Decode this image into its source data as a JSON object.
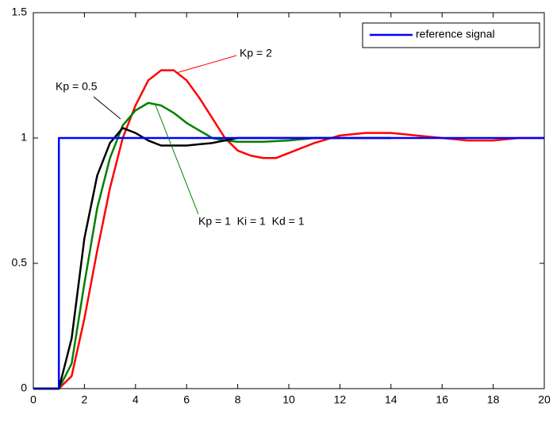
{
  "chart_data": {
    "type": "line",
    "xlim": [
      0,
      20
    ],
    "xticks": [
      0,
      2,
      4,
      6,
      8,
      10,
      12,
      14,
      16,
      18,
      20
    ],
    "ylim": [
      0,
      1.5
    ],
    "yticks": [
      0,
      0.5,
      1,
      1.5
    ],
    "legend": "upper right",
    "series": [
      {
        "name": "reference signal",
        "color": "#0000ff",
        "x": [
          0,
          1,
          1,
          20
        ],
        "values": [
          0,
          0,
          1,
          1
        ]
      },
      {
        "color": "#000000",
        "x": [
          0,
          1,
          1.5,
          2,
          2.5,
          3,
          3.5,
          4,
          4.5,
          5,
          6,
          7,
          8,
          9,
          10,
          12,
          14
        ],
        "values": [
          0,
          0,
          0.2,
          0.6,
          0.85,
          0.98,
          1.04,
          1.02,
          0.99,
          0.97,
          0.97,
          0.98,
          1.0,
          1.0,
          1.0,
          1.0,
          1.0
        ]
      },
      {
        "color": "#008000",
        "x": [
          0,
          1,
          1.5,
          2,
          2.5,
          3,
          3.5,
          4,
          4.5,
          5,
          5.5,
          6,
          6.5,
          7,
          7.5,
          8,
          9,
          10,
          11,
          12
        ],
        "values": [
          0,
          0,
          0.1,
          0.42,
          0.72,
          0.92,
          1.05,
          1.11,
          1.14,
          1.13,
          1.1,
          1.06,
          1.03,
          1.0,
          0.99,
          0.985,
          0.985,
          0.99,
          1.0,
          1.0
        ]
      },
      {
        "color": "#ff0000",
        "x": [
          0,
          1,
          1.5,
          2,
          2.5,
          3,
          3.5,
          4,
          4.5,
          5,
          5.5,
          6,
          6.5,
          7,
          7.5,
          8,
          8.5,
          9,
          9.5,
          10,
          11,
          12,
          13,
          14,
          15,
          16,
          17,
          18,
          19,
          20
        ],
        "values": [
          0,
          0,
          0.05,
          0.28,
          0.55,
          0.8,
          1.0,
          1.13,
          1.23,
          1.27,
          1.27,
          1.23,
          1.16,
          1.08,
          1.0,
          0.95,
          0.93,
          0.92,
          0.92,
          0.94,
          0.98,
          1.01,
          1.02,
          1.02,
          1.01,
          1.0,
          0.99,
          0.99,
          1.0,
          1.0
        ]
      }
    ],
    "annotations": [
      {
        "text": "Kp = 0.5",
        "color": "#000000"
      },
      {
        "text": "Kp = 2",
        "color": "#ff0000"
      },
      {
        "text": "Kp = 1  Ki = 1  Kd = 1",
        "color": "#008000"
      }
    ]
  }
}
